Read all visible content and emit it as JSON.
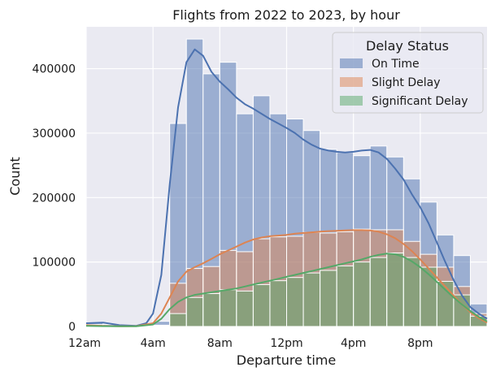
{
  "chart_data": {
    "type": "bar",
    "title": "Flights from 2022 to 2023, by hour",
    "xlabel": "Departure time",
    "ylabel": "Count",
    "x_ticks": [
      {
        "value": 0,
        "label": "12am"
      },
      {
        "value": 4,
        "label": "4am"
      },
      {
        "value": 8,
        "label": "8am"
      },
      {
        "value": 12,
        "label": "12pm"
      },
      {
        "value": 16,
        "label": "4pm"
      },
      {
        "value": 20,
        "label": "8pm"
      }
    ],
    "y_ticks": [
      0,
      100000,
      200000,
      300000,
      400000
    ],
    "xlim": [
      0,
      24
    ],
    "ylim": [
      0,
      465000
    ],
    "grid": true,
    "legend_title": "Delay Status",
    "legend_position": "top-right",
    "hours": [
      0,
      1,
      2,
      3,
      4,
      5,
      6,
      7,
      8,
      9,
      10,
      11,
      12,
      13,
      14,
      15,
      16,
      17,
      18,
      19,
      20,
      21,
      22,
      23
    ],
    "series": [
      {
        "name": "On Time",
        "color": "#4c72b0",
        "values": [
          6000,
          3000,
          1000,
          1000,
          8000,
          315000,
          446000,
          392000,
          410000,
          330000,
          358000,
          330000,
          322000,
          304000,
          275000,
          270000,
          265000,
          280000,
          263000,
          229000,
          193000,
          142000,
          110000,
          35000
        ],
        "kde": [
          [
            0,
            5000
          ],
          [
            1,
            6000
          ],
          [
            2,
            2000
          ],
          [
            3,
            1000
          ],
          [
            3.6,
            5000
          ],
          [
            4,
            20000
          ],
          [
            4.5,
            80000
          ],
          [
            5,
            220000
          ],
          [
            5.5,
            340000
          ],
          [
            6,
            410000
          ],
          [
            6.5,
            430000
          ],
          [
            7,
            420000
          ],
          [
            7.5,
            395000
          ],
          [
            8,
            380000
          ],
          [
            8.5,
            368000
          ],
          [
            9,
            355000
          ],
          [
            9.5,
            345000
          ],
          [
            10,
            338000
          ],
          [
            10.5,
            330000
          ],
          [
            11,
            322000
          ],
          [
            11.5,
            315000
          ],
          [
            12,
            308000
          ],
          [
            12.5,
            300000
          ],
          [
            13,
            290000
          ],
          [
            13.5,
            282000
          ],
          [
            14,
            276000
          ],
          [
            14.5,
            273000
          ],
          [
            15,
            271000
          ],
          [
            15.5,
            270000
          ],
          [
            16,
            271000
          ],
          [
            16.5,
            273000
          ],
          [
            17,
            274000
          ],
          [
            17.5,
            270000
          ],
          [
            18,
            260000
          ],
          [
            18.5,
            245000
          ],
          [
            19,
            228000
          ],
          [
            19.5,
            205000
          ],
          [
            20,
            185000
          ],
          [
            20.5,
            160000
          ],
          [
            21,
            130000
          ],
          [
            21.5,
            100000
          ],
          [
            22,
            72000
          ],
          [
            22.5,
            48000
          ],
          [
            23,
            30000
          ],
          [
            23.5,
            20000
          ],
          [
            24,
            12000
          ]
        ]
      },
      {
        "name": "Slight Delay",
        "color": "#dd8452",
        "values": [
          3000,
          1000,
          500,
          300,
          2000,
          67000,
          90000,
          93000,
          118000,
          116000,
          136000,
          139000,
          140000,
          146000,
          145000,
          147000,
          151000,
          150000,
          150000,
          132000,
          112000,
          92000,
          62000,
          20000
        ],
        "kde": [
          [
            0,
            2000
          ],
          [
            1,
            1000
          ],
          [
            2,
            300
          ],
          [
            3,
            500
          ],
          [
            4,
            5000
          ],
          [
            4.5,
            20000
          ],
          [
            5,
            45000
          ],
          [
            5.5,
            70000
          ],
          [
            6,
            85000
          ],
          [
            6.5,
            92000
          ],
          [
            7,
            98000
          ],
          [
            7.5,
            105000
          ],
          [
            8,
            112000
          ],
          [
            8.5,
            118000
          ],
          [
            9,
            124000
          ],
          [
            9.5,
            130000
          ],
          [
            10,
            135000
          ],
          [
            10.5,
            138000
          ],
          [
            11,
            140000
          ],
          [
            11.5,
            141000
          ],
          [
            12,
            142000
          ],
          [
            12.5,
            144000
          ],
          [
            13,
            145000
          ],
          [
            13.5,
            146000
          ],
          [
            14,
            147000
          ],
          [
            14.5,
            148000
          ],
          [
            15,
            148500
          ],
          [
            15.5,
            149000
          ],
          [
            16,
            149500
          ],
          [
            16.5,
            149500
          ],
          [
            17,
            149000
          ],
          [
            17.5,
            147000
          ],
          [
            18,
            143000
          ],
          [
            18.5,
            137000
          ],
          [
            19,
            128000
          ],
          [
            19.5,
            117000
          ],
          [
            20,
            104000
          ],
          [
            20.5,
            90000
          ],
          [
            21,
            76000
          ],
          [
            21.5,
            62000
          ],
          [
            22,
            48000
          ],
          [
            22.5,
            34000
          ],
          [
            23,
            22000
          ],
          [
            23.5,
            13000
          ],
          [
            24,
            6000
          ]
        ]
      },
      {
        "name": "Significant Delay",
        "color": "#55a868",
        "values": [
          1000,
          500,
          200,
          100,
          1000,
          20000,
          45000,
          51000,
          57000,
          55000,
          65000,
          71000,
          76000,
          83000,
          87000,
          94000,
          100000,
          107000,
          114000,
          107000,
          92000,
          70000,
          49000,
          16000
        ],
        "kde": [
          [
            0,
            1000
          ],
          [
            1,
            500
          ],
          [
            2,
            200
          ],
          [
            3,
            300
          ],
          [
            4,
            3000
          ],
          [
            4.5,
            12000
          ],
          [
            5,
            27000
          ],
          [
            5.5,
            38000
          ],
          [
            6,
            45000
          ],
          [
            6.5,
            49000
          ],
          [
            7,
            51000
          ],
          [
            7.5,
            53000
          ],
          [
            8,
            55000
          ],
          [
            8.5,
            57000
          ],
          [
            9,
            59000
          ],
          [
            9.5,
            62000
          ],
          [
            10,
            65000
          ],
          [
            10.5,
            68000
          ],
          [
            11,
            71000
          ],
          [
            11.5,
            74000
          ],
          [
            12,
            77000
          ],
          [
            12.5,
            80000
          ],
          [
            13,
            83000
          ],
          [
            13.5,
            86000
          ],
          [
            14,
            89000
          ],
          [
            14.5,
            92000
          ],
          [
            15,
            95000
          ],
          [
            15.5,
            98000
          ],
          [
            16,
            101000
          ],
          [
            16.5,
            104000
          ],
          [
            17,
            108000
          ],
          [
            17.5,
            111000
          ],
          [
            18,
            113000
          ],
          [
            18.5,
            112000
          ],
          [
            19,
            108000
          ],
          [
            19.5,
            101000
          ],
          [
            20,
            92000
          ],
          [
            20.5,
            81000
          ],
          [
            21,
            69000
          ],
          [
            21.5,
            57000
          ],
          [
            22,
            45000
          ],
          [
            22.5,
            34000
          ],
          [
            23,
            24000
          ],
          [
            23.5,
            15000
          ],
          [
            24,
            8000
          ]
        ]
      }
    ]
  }
}
